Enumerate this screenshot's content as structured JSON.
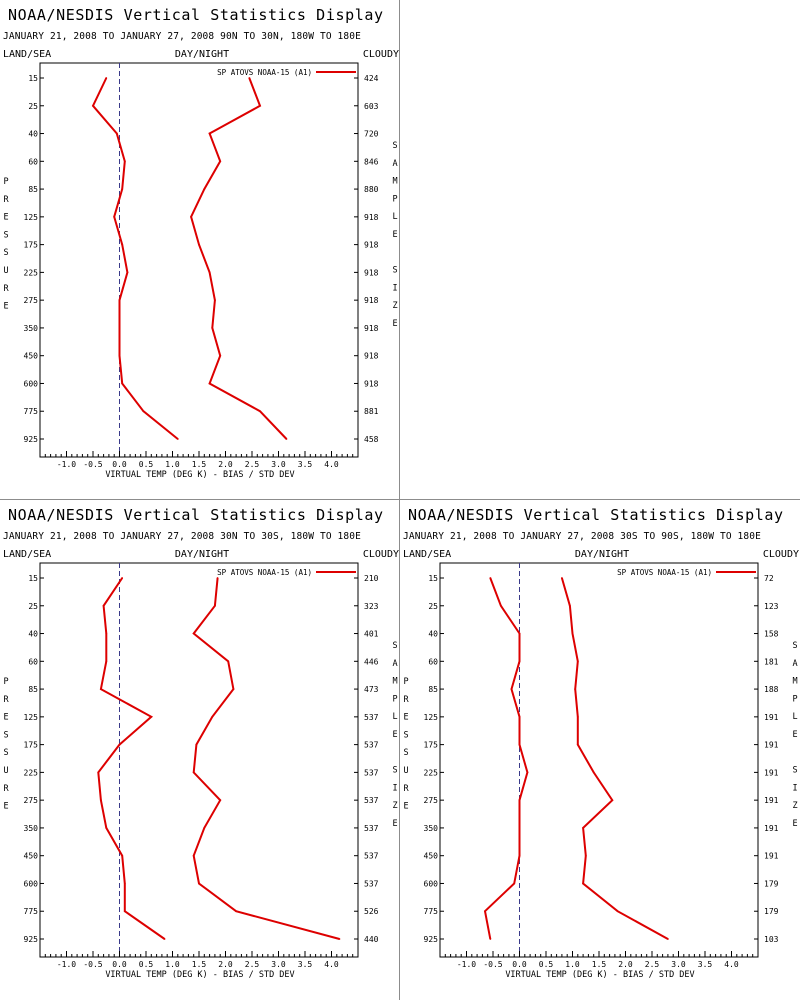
{
  "page": {
    "background": "#ffffff"
  },
  "style": {
    "series_color": "#dd0000",
    "axis_color": "#000000",
    "zero_line_color": "#3a3a8a",
    "divider_color": "#8c8c8c"
  },
  "chart_data": [
    {
      "type": "line",
      "title": "NOAA/NESDIS Vertical Statistics Display",
      "subtitle": "JANUARY 21, 2008 TO JANUARY 27, 2008 90N TO 30N, 180W TO 180E",
      "corner_left": "LAND/SEA",
      "corner_center": "DAY/NIGHT",
      "corner_right": "CLOUDY",
      "ylabel": "PRESSURE",
      "ylabel_right": "SAMPLE SIZE",
      "xlabel": "VIRTUAL TEMP (DEG K) - BIAS / STD DEV",
      "legend": "SP ATOVS NOAA-15 (A1)",
      "legend_position": "top-right",
      "xlim": [
        -1.5,
        4.5
      ],
      "x_ticks": [
        "-1.0",
        "-0.5",
        "0.0",
        "0.5",
        "1.0",
        "1.5",
        "2.0",
        "2.5",
        "3.0",
        "3.5",
        "4.0"
      ],
      "x_tick_values": [
        -1.0,
        -0.5,
        0.0,
        0.5,
        1.0,
        1.5,
        2.0,
        2.5,
        3.0,
        3.5,
        4.0
      ],
      "pressure_levels": [
        15,
        25,
        40,
        60,
        85,
        125,
        175,
        225,
        275,
        350,
        450,
        600,
        775,
        925
      ],
      "pressure_labels": [
        "15",
        "25",
        "40",
        "60",
        "85",
        "125",
        "175",
        "225",
        "275",
        "350",
        "450",
        "600",
        "775",
        "925"
      ],
      "sample_size": [
        "424",
        "603",
        "720",
        "846",
        "880",
        "918",
        "918",
        "918",
        "918",
        "918",
        "918",
        "918",
        "881",
        "458"
      ],
      "series": [
        {
          "name": "bias",
          "values": [
            -0.25,
            -0.5,
            -0.05,
            0.1,
            0.05,
            -0.1,
            0.05,
            0.15,
            0.0,
            0.0,
            0.0,
            0.05,
            0.45,
            1.1
          ]
        },
        {
          "name": "std_dev",
          "values": [
            2.45,
            2.65,
            1.7,
            1.9,
            1.6,
            1.35,
            1.5,
            1.7,
            1.8,
            1.75,
            1.9,
            1.7,
            2.65,
            3.15
          ]
        }
      ]
    },
    {
      "type": "line",
      "title": "NOAA/NESDIS Vertical Statistics Display",
      "subtitle": "JANUARY 21, 2008 TO JANUARY 27, 2008 30N TO 30S, 180W TO 180E",
      "corner_left": "LAND/SEA",
      "corner_center": "DAY/NIGHT",
      "corner_right": "CLOUDY",
      "ylabel": "PRESSURE",
      "ylabel_right": "SAMPLE SIZE",
      "xlabel": "VIRTUAL TEMP (DEG K) - BIAS / STD DEV",
      "legend": "SP ATOVS NOAA-15 (A1)",
      "legend_position": "top-right",
      "xlim": [
        -1.5,
        4.5
      ],
      "x_ticks": [
        "-1.0",
        "-0.5",
        "0.0",
        "0.5",
        "1.0",
        "1.5",
        "2.0",
        "2.5",
        "3.0",
        "3.5",
        "4.0"
      ],
      "x_tick_values": [
        -1.0,
        -0.5,
        0.0,
        0.5,
        1.0,
        1.5,
        2.0,
        2.5,
        3.0,
        3.5,
        4.0
      ],
      "pressure_levels": [
        15,
        25,
        40,
        60,
        85,
        125,
        175,
        225,
        275,
        350,
        450,
        600,
        775,
        925
      ],
      "pressure_labels": [
        "15",
        "25",
        "40",
        "60",
        "85",
        "125",
        "175",
        "225",
        "275",
        "350",
        "450",
        "600",
        "775",
        "925"
      ],
      "sample_size": [
        "210",
        "323",
        "401",
        "446",
        "473",
        "537",
        "537",
        "537",
        "537",
        "537",
        "537",
        "537",
        "526",
        "440"
      ],
      "series": [
        {
          "name": "bias",
          "values": [
            0.05,
            -0.3,
            -0.25,
            -0.25,
            -0.35,
            0.6,
            0.0,
            -0.4,
            -0.35,
            -0.25,
            0.05,
            0.1,
            0.1,
            0.85
          ]
        },
        {
          "name": "std_dev",
          "values": [
            1.85,
            1.8,
            1.4,
            2.05,
            2.15,
            1.75,
            1.45,
            1.4,
            1.9,
            1.6,
            1.4,
            1.5,
            2.2,
            4.15
          ]
        }
      ]
    },
    {
      "type": "line",
      "title": "NOAA/NESDIS Vertical Statistics Display",
      "subtitle": "JANUARY 21, 2008 TO JANUARY 27, 2008 30S TO 90S, 180W TO 180E",
      "corner_left": "LAND/SEA",
      "corner_center": "DAY/NIGHT",
      "corner_right": "CLOUDY",
      "ylabel": "PRESSURE",
      "ylabel_right": "SAMPLE SIZE",
      "xlabel": "VIRTUAL TEMP (DEG K) - BIAS / STD DEV",
      "legend": "SP ATOVS NOAA-15 (A1)",
      "legend_position": "top-right",
      "xlim": [
        -1.5,
        4.5
      ],
      "x_ticks": [
        "-1.0",
        "-0.5",
        "0.0",
        "0.5",
        "1.0",
        "1.5",
        "2.0",
        "2.5",
        "3.0",
        "3.5",
        "4.0"
      ],
      "x_tick_values": [
        -1.0,
        -0.5,
        0.0,
        0.5,
        1.0,
        1.5,
        2.0,
        2.5,
        3.0,
        3.5,
        4.0
      ],
      "pressure_levels": [
        15,
        25,
        40,
        60,
        85,
        125,
        175,
        225,
        275,
        350,
        450,
        600,
        775,
        925
      ],
      "pressure_labels": [
        "15",
        "25",
        "40",
        "60",
        "85",
        "125",
        "175",
        "225",
        "275",
        "350",
        "450",
        "600",
        "775",
        "925"
      ],
      "sample_size": [
        "72",
        "123",
        "158",
        "181",
        "188",
        "191",
        "191",
        "191",
        "191",
        "191",
        "191",
        "179",
        "179",
        "103"
      ],
      "series": [
        {
          "name": "bias",
          "values": [
            -0.55,
            -0.35,
            0.0,
            0.0,
            -0.15,
            0.0,
            0.0,
            0.15,
            0.0,
            0.0,
            0.0,
            -0.1,
            -0.65,
            -0.55
          ]
        },
        {
          "name": "std_dev",
          "values": [
            0.8,
            0.95,
            1.0,
            1.1,
            1.05,
            1.1,
            1.1,
            1.4,
            1.75,
            1.2,
            1.25,
            1.2,
            1.85,
            2.8
          ]
        }
      ]
    }
  ]
}
